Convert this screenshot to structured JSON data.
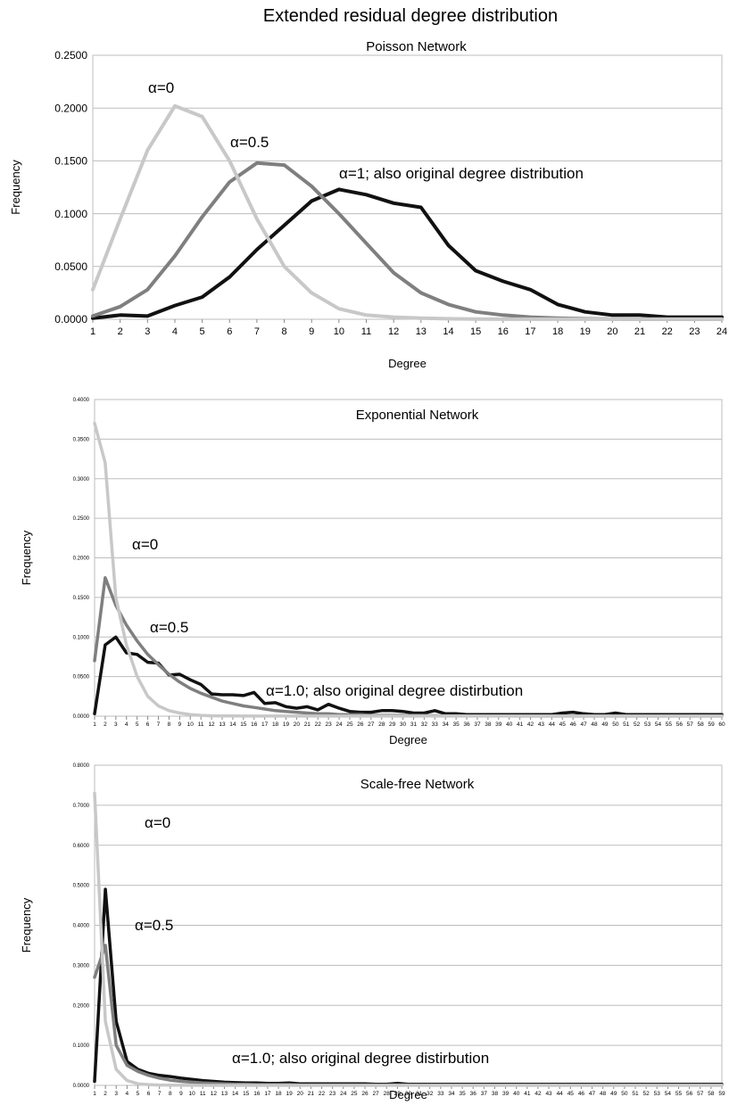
{
  "figure": {
    "title": "Extended residual degree distribution"
  },
  "chart_data": [
    {
      "type": "line",
      "title": "Poisson Network",
      "xlabel": "Degree",
      "ylabel": "Frequency",
      "x_start": 1,
      "ylim": [
        0,
        0.25
      ],
      "yticks": [
        "0.0000",
        "0.0500",
        "0.1000",
        "0.1500",
        "0.2000",
        "0.2500"
      ],
      "grid": true,
      "series": [
        {
          "label": "α=0",
          "color": "#c8c8c8",
          "values": [
            0.028,
            0.095,
            0.16,
            0.202,
            0.192,
            0.15,
            0.095,
            0.05,
            0.025,
            0.01,
            0.004,
            0.002,
            0.001,
            0.0005,
            0.0002,
            0.0001,
            0.0001,
            0.0001,
            0.0001,
            0.0001,
            0.0001,
            0.0001,
            0.0001,
            0.0001
          ]
        },
        {
          "label": "α=0.5",
          "color": "#7f7f7f",
          "values": [
            0.003,
            0.012,
            0.028,
            0.06,
            0.097,
            0.13,
            0.148,
            0.146,
            0.126,
            0.1,
            0.072,
            0.044,
            0.025,
            0.014,
            0.007,
            0.004,
            0.002,
            0.001,
            0.0005,
            0.0002,
            0.0001,
            0.0001,
            0.0001,
            0.0001
          ]
        },
        {
          "label": "α=1; also original degree distribution",
          "color": "#111111",
          "values": [
            0.001,
            0.004,
            0.003,
            0.013,
            0.021,
            0.04,
            0.066,
            0.089,
            0.112,
            0.123,
            0.118,
            0.11,
            0.106,
            0.07,
            0.046,
            0.036,
            0.028,
            0.014,
            0.007,
            0.004,
            0.004,
            0.002,
            0.002,
            0.002
          ]
        }
      ]
    },
    {
      "type": "line",
      "title": "Exponential Network",
      "xlabel": "Degree",
      "ylabel": "Frequency",
      "x_start": 1,
      "ylim": [
        0,
        0.4
      ],
      "yticks": [
        "0.0000",
        "0.0500",
        "0.1000",
        "0.1500",
        "0.2000",
        "0.2500",
        "0.3000",
        "0.3500",
        "0.4000"
      ],
      "grid": true,
      "series": [
        {
          "label": "α=0",
          "color": "#c8c8c8",
          "values": [
            0.37,
            0.32,
            0.15,
            0.09,
            0.05,
            0.025,
            0.013,
            0.007,
            0.004,
            0.002,
            0.001,
            0.0005,
            0.0003,
            0.0002,
            0.0001,
            0.0001,
            0.0001,
            0.0001,
            0.0001,
            0.0001,
            0.0001,
            0.0001,
            0.0001,
            0.0001,
            0.0001,
            0.0001,
            0.0001,
            0.0001,
            0.0001,
            0.0001,
            0.0001,
            0.0001,
            0.0001,
            0.0001,
            0.0001,
            0.0001,
            0.0001,
            0.0001,
            0.0001,
            0.0001,
            0.0001,
            0.0001,
            0.0001,
            0.0001,
            0.0001,
            0.0001,
            0.0001,
            0.0001,
            0.0001,
            0.0001,
            0.0001,
            0.0001,
            0.0001,
            0.0001,
            0.0001,
            0.0001,
            0.0001,
            0.0001,
            0.0001,
            0.0001
          ]
        },
        {
          "label": "α=0.5",
          "color": "#7f7f7f",
          "values": [
            0.07,
            0.175,
            0.14,
            0.115,
            0.095,
            0.078,
            0.065,
            0.053,
            0.043,
            0.035,
            0.029,
            0.024,
            0.019,
            0.016,
            0.013,
            0.011,
            0.009,
            0.007,
            0.006,
            0.005,
            0.004,
            0.003,
            0.003,
            0.002,
            0.002,
            0.002,
            0.001,
            0.001,
            0.001,
            0.001,
            0.001,
            0.0008,
            0.0006,
            0.0005,
            0.0004,
            0.0003,
            0.0003,
            0.0002,
            0.0002,
            0.0002,
            0.0001,
            0.0001,
            0.0001,
            0.0001,
            0.0001,
            0.0001,
            0.0001,
            0.0001,
            0.0001,
            0.0001,
            0.0001,
            0.0001,
            0.0001,
            0.0001,
            0.0001,
            0.0001,
            0.0001,
            0.0001,
            0.0001,
            0.0001
          ]
        },
        {
          "label": "α=1.0; also original degree distirbution",
          "color": "#111111",
          "values": [
            0.003,
            0.09,
            0.1,
            0.08,
            0.078,
            0.068,
            0.067,
            0.052,
            0.053,
            0.046,
            0.04,
            0.028,
            0.027,
            0.027,
            0.026,
            0.03,
            0.016,
            0.017,
            0.012,
            0.01,
            0.012,
            0.008,
            0.015,
            0.01,
            0.006,
            0.005,
            0.005,
            0.007,
            0.007,
            0.006,
            0.004,
            0.004,
            0.007,
            0.003,
            0.003,
            0.002,
            0.002,
            0.002,
            0.002,
            0.002,
            0.002,
            0.002,
            0.002,
            0.002,
            0.004,
            0.005,
            0.003,
            0.002,
            0.002,
            0.004,
            0.002,
            0.002,
            0.002,
            0.002,
            0.002,
            0.002,
            0.002,
            0.002,
            0.002,
            0.002
          ]
        }
      ]
    },
    {
      "type": "line",
      "title": "Scale-free Network",
      "xlabel": "Degree",
      "ylabel": "Frequency",
      "x_start": 1,
      "ylim": [
        0,
        0.8
      ],
      "yticks": [
        "0.0000",
        "0.1000",
        "0.2000",
        "0.3000",
        "0.4000",
        "0.5000",
        "0.6000",
        "0.7000",
        "0.8000"
      ],
      "grid": true,
      "series": [
        {
          "label": "α=0",
          "color": "#c8c8c8",
          "values": [
            0.73,
            0.16,
            0.04,
            0.012,
            0.004,
            0.002,
            0.001,
            0.0005,
            0.0003,
            0.0002,
            0.0001,
            0.0001,
            0.0001,
            0.0001,
            0.0001,
            0.0001,
            0.0001,
            0.0001,
            0.0001,
            0.0001,
            0.0001,
            0.0001,
            0.0001,
            0.0001,
            0.0001,
            0.0001,
            0.0001,
            0.0001,
            0.0001,
            0.0001,
            0.0001,
            0.0001,
            0.0001,
            0.0001,
            0.0001,
            0.0001,
            0.0001,
            0.0001,
            0.0001,
            0.0001,
            0.0001,
            0.0001,
            0.0001,
            0.0001,
            0.0001,
            0.0001,
            0.0001,
            0.0001,
            0.0001,
            0.0001,
            0.0001,
            0.0001,
            0.0001,
            0.0001,
            0.0001,
            0.0001,
            0.0001,
            0.0001,
            0.0001
          ]
        },
        {
          "label": "α=0.5",
          "color": "#7f7f7f",
          "values": [
            0.27,
            0.35,
            0.1,
            0.05,
            0.035,
            0.025,
            0.018,
            0.013,
            0.01,
            0.008,
            0.006,
            0.005,
            0.004,
            0.003,
            0.003,
            0.002,
            0.002,
            0.002,
            0.002,
            0.001,
            0.001,
            0.001,
            0.001,
            0.001,
            0.001,
            0.001,
            0.001,
            0.001,
            0.001,
            0.001,
            0.001,
            0.001,
            0.001,
            0.001,
            0.001,
            0.001,
            0.001,
            0.001,
            0.001,
            0.001,
            0.001,
            0.001,
            0.001,
            0.001,
            0.001,
            0.001,
            0.001,
            0.001,
            0.001,
            0.001,
            0.001,
            0.001,
            0.001,
            0.001,
            0.001,
            0.001,
            0.001,
            0.001,
            0.001
          ]
        },
        {
          "label": "α=1.0; also original degree distirbution",
          "color": "#111111",
          "values": [
            0.01,
            0.49,
            0.16,
            0.06,
            0.04,
            0.03,
            0.025,
            0.022,
            0.018,
            0.015,
            0.012,
            0.01,
            0.008,
            0.007,
            0.006,
            0.006,
            0.005,
            0.005,
            0.006,
            0.004,
            0.004,
            0.004,
            0.004,
            0.004,
            0.004,
            0.004,
            0.003,
            0.003,
            0.005,
            0.003,
            0.003,
            0.003,
            0.003,
            0.003,
            0.003,
            0.003,
            0.003,
            0.003,
            0.003,
            0.003,
            0.003,
            0.003,
            0.003,
            0.003,
            0.003,
            0.003,
            0.003,
            0.003,
            0.003,
            0.003,
            0.003,
            0.003,
            0.003,
            0.003,
            0.003,
            0.003,
            0.003,
            0.003,
            0.003
          ]
        }
      ]
    }
  ]
}
